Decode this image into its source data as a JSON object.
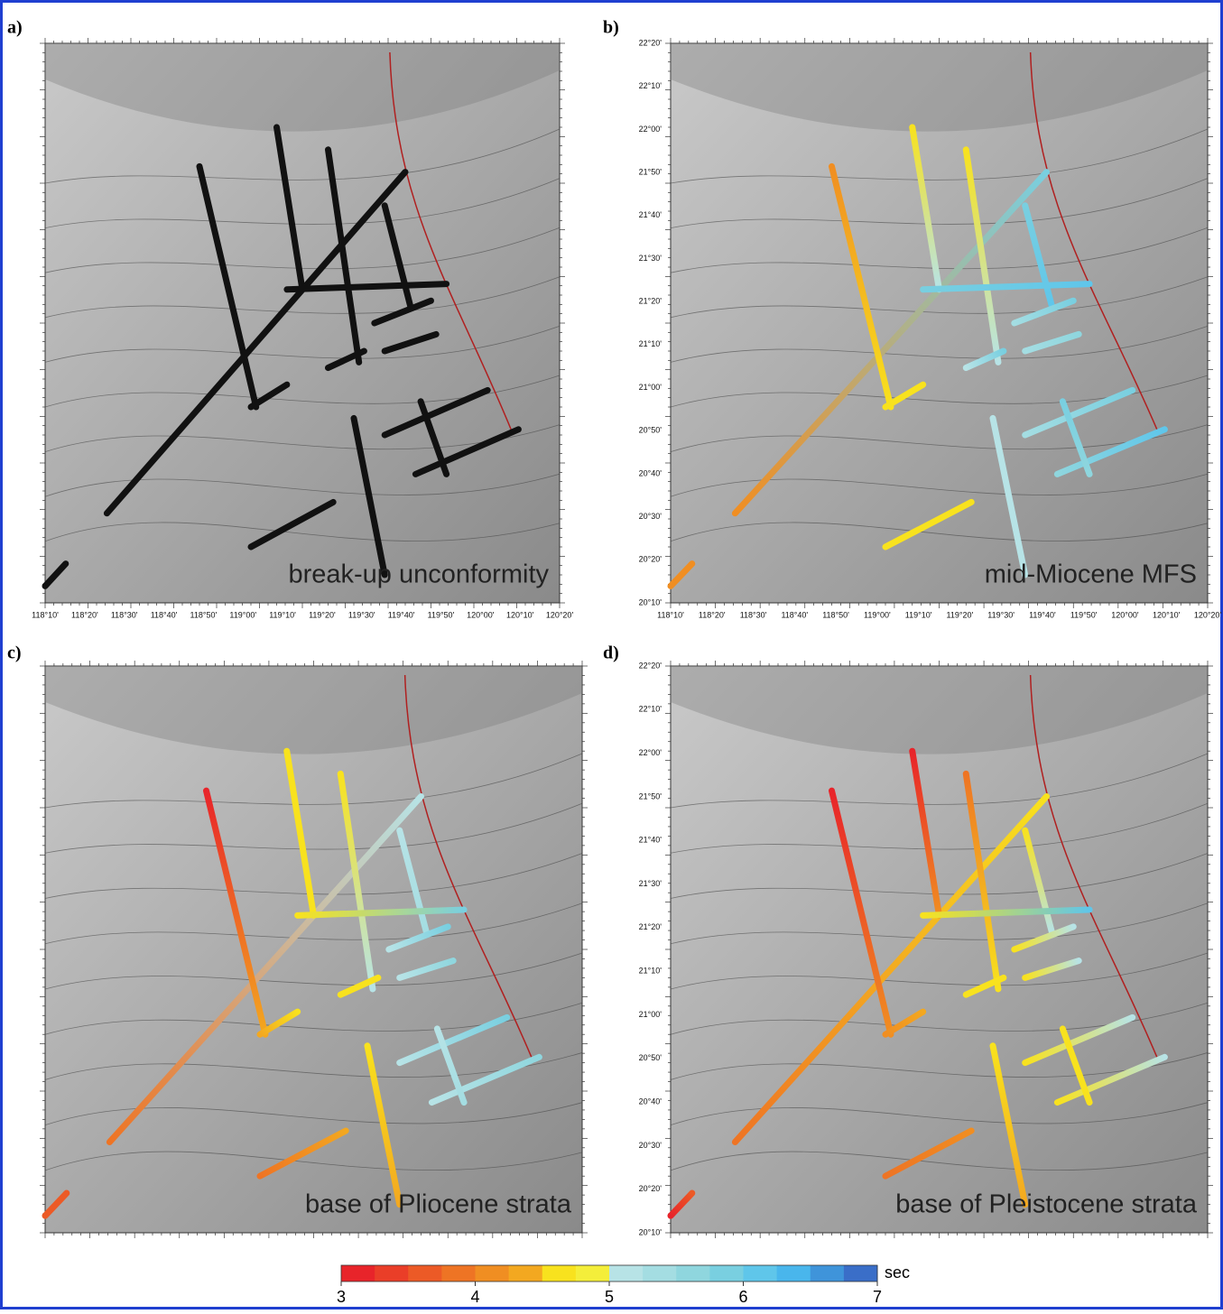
{
  "panels": [
    {
      "letter": "a)",
      "caption": "break-up unconformity"
    },
    {
      "letter": "b)",
      "caption": "mid-Miocene MFS"
    },
    {
      "letter": "c)",
      "caption": "base of Pliocene strata"
    },
    {
      "letter": "d)",
      "caption": "base of Pleistocene strata"
    }
  ],
  "lon_ticks": [
    "118°10'",
    "118°20'",
    "118°30'",
    "118°40'",
    "118°50'",
    "119°00'",
    "119°10'",
    "119°20'",
    "119°30'",
    "119°40'",
    "119°50'",
    "120°00'",
    "120°10'",
    "120°20'"
  ],
  "lat_ticks": [
    "22°20'",
    "22°10'",
    "22°00'",
    "21°50'",
    "21°40'",
    "21°30'",
    "21°20'",
    "21°10'",
    "21°00'",
    "20°50'",
    "20°40'",
    "20°30'",
    "20°20'",
    "20°10'"
  ],
  "colorbar": {
    "range": [
      3,
      7
    ],
    "ticks": [
      3,
      4,
      5,
      6,
      7
    ],
    "unit": "sec",
    "colors": [
      "#e8242a",
      "#ea3e28",
      "#ec5a26",
      "#ee7424",
      "#f08e22",
      "#f3a820",
      "#f8e21e",
      "#f4ee3a",
      "#b7e3e6",
      "#a4dde2",
      "#8fd6de",
      "#79cfe0",
      "#5fc6ea",
      "#49b6ec",
      "#3f94da",
      "#3a6ec8"
    ]
  }
}
